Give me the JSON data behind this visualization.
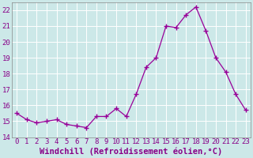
{
  "x": [
    0,
    1,
    2,
    3,
    4,
    5,
    6,
    7,
    8,
    9,
    10,
    11,
    12,
    13,
    14,
    15,
    16,
    17,
    18,
    19,
    20,
    21,
    22,
    23
  ],
  "y": [
    15.5,
    15.1,
    14.9,
    15.0,
    15.1,
    14.8,
    14.7,
    14.6,
    15.3,
    15.3,
    15.8,
    15.3,
    16.7,
    18.4,
    19.0,
    21.0,
    20.9,
    21.7,
    22.2,
    20.7,
    19.0,
    18.1,
    16.7,
    15.7
  ],
  "line_color": "#990099",
  "marker": "+",
  "markersize": 4,
  "linewidth": 0.9,
  "background_color": "#cce8e8",
  "grid_color": "#b0d8d8",
  "xlabel": "Windchill (Refroidissement éolien,°C)",
  "ylim": [
    14,
    22.5
  ],
  "yticks": [
    14,
    15,
    16,
    17,
    18,
    19,
    20,
    21,
    22
  ],
  "xlim": [
    -0.5,
    23.5
  ],
  "tick_fontsize": 6.5,
  "xlabel_fontsize": 7.5,
  "label_color": "#880088"
}
